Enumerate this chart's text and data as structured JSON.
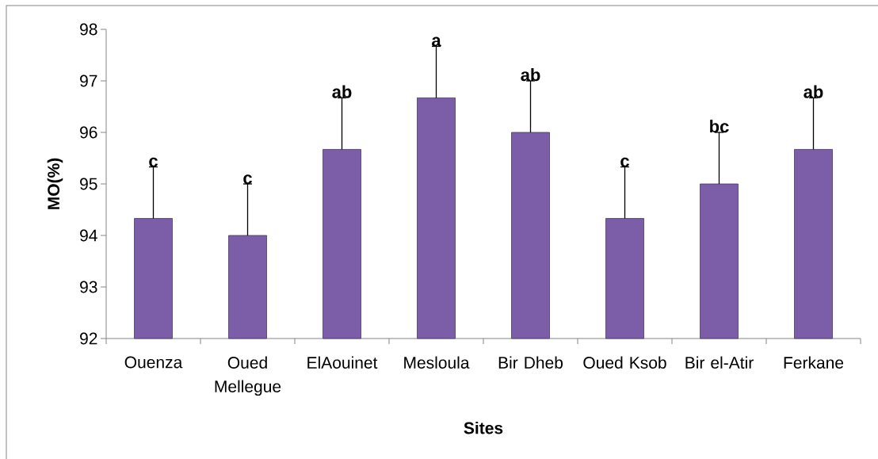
{
  "chart_data": {
    "type": "bar",
    "xlabel": "Sites",
    "ylabel": "MO(%)",
    "categories": [
      "Ouenza",
      "Oued Mellegue",
      "ElAouinet",
      "Mesloula",
      "Bir Dheb",
      "Oued Ksob",
      "Bir el-Atir",
      "Ferkane"
    ],
    "values": [
      94.33,
      94,
      95.67,
      96.67,
      96,
      94.33,
      95,
      95.67
    ],
    "errors": [
      [
        94.33,
        95.33
      ],
      [
        94,
        95
      ],
      [
        95.67,
        96.67
      ],
      [
        96.67,
        97.67
      ],
      [
        96,
        97
      ],
      [
        94.33,
        95.33
      ],
      [
        95,
        96
      ],
      [
        95.67,
        96.67
      ]
    ],
    "color": "#7b5ea7",
    "ylim": [
      92,
      98
    ],
    "yticks": [
      92,
      93,
      94,
      95,
      96,
      97,
      98
    ],
    "annotations": [
      {
        "text": "c",
        "x": "Ouenza",
        "y": 95.33
      },
      {
        "text": "c",
        "x": "Oued Mellegue",
        "y": 95
      },
      {
        "text": "ab",
        "x": "ElAouinet",
        "y": 96.67
      },
      {
        "text": "a",
        "x": "Mesloula",
        "y": 97.67
      },
      {
        "text": "ab",
        "x": "Bir Dheb",
        "y": 97
      },
      {
        "text": "c",
        "x": "Oued Ksob",
        "y": 95.33
      },
      {
        "text": "bc",
        "x": "Bir el-Atir",
        "y": 96
      },
      {
        "text": "ab",
        "x": "Ferkane",
        "y": 96.67
      }
    ]
  }
}
